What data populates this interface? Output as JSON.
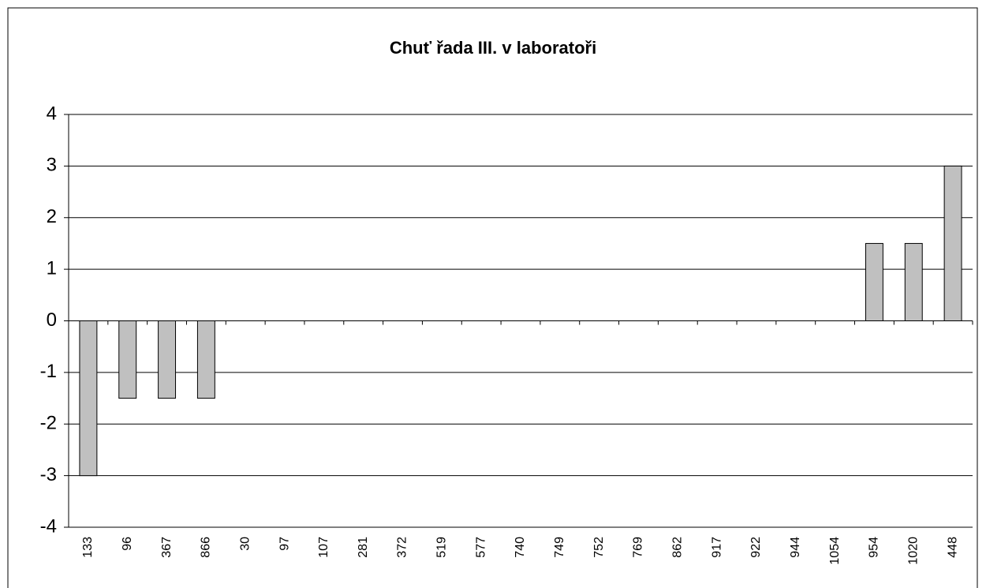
{
  "chart_data": {
    "type": "bar",
    "title": "Chuť řada III. v laboratoři",
    "categories": [
      "133",
      "96",
      "367",
      "866",
      "30",
      "97",
      "107",
      "281",
      "372",
      "519",
      "577",
      "740",
      "749",
      "752",
      "769",
      "862",
      "917",
      "922",
      "944",
      "1054",
      "954",
      "1020",
      "448"
    ],
    "values": [
      -3,
      -1.5,
      -1.5,
      -1.5,
      0,
      0,
      0,
      0,
      0,
      0,
      0,
      0,
      0,
      0,
      0,
      0,
      0,
      0,
      0,
      0,
      1.5,
      1.5,
      3
    ],
    "color": "#c0c0c0",
    "ylim": [
      -4,
      4
    ],
    "yticks": [
      -4,
      -3,
      -2,
      -1,
      0,
      1,
      2,
      3,
      4
    ],
    "grid": true
  }
}
